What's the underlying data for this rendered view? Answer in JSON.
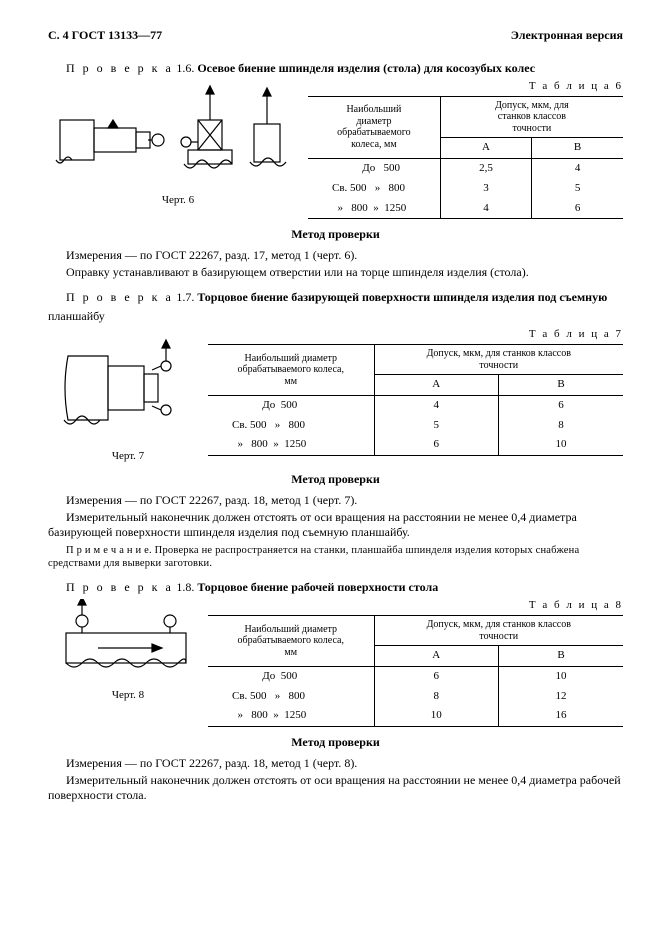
{
  "header": {
    "left": "С. 4 ГОСТ 13133—77",
    "right": "Электронная версия"
  },
  "check16": {
    "prefix": "П р о в е р к а",
    "num": " 1.6. ",
    "title": "Осевое биение шпинделя изделия (стола) для косозубых колес"
  },
  "table6": {
    "label": "Т а б л и ц а  6",
    "h1": "Наибольший\nдиаметр\nобрабатываемого\nколеса, мм",
    "h2": "Допуск, мкм, для\nстанков классов\nточности",
    "hA": "А",
    "hB": "В",
    "rows": [
      {
        "cat": "           До   500",
        "a": "2,5",
        "b": "4"
      },
      {
        "cat": "Св. 500   »   800",
        "a": "3",
        "b": "5"
      },
      {
        "cat": "  »   800  »  1250",
        "a": "4",
        "b": "6"
      }
    ]
  },
  "fig6": "Черт. 6",
  "method_label": "Метод проверки",
  "para16a": "Измерения — по ГОСТ 22267, разд. 17, метод 1 (черт. 6).",
  "para16b": "Оправку устанавливают в базирующем отверстии или на торце шпинделя изделия (стола).",
  "check17": {
    "prefix": "П р о в е р к а",
    "num": " 1.7. ",
    "title1": "Торцовое биение базирующей поверхности шпинделя изделия под съемную",
    "title2": "планшайбу"
  },
  "table7": {
    "label": "Т а б л и ц а  7",
    "h1": "Наибольший диаметр\nобрабатываемого колеса,\nмм",
    "h2": "Допуск, мкм, для станков классов\nточности",
    "hA": "А",
    "hB": "В",
    "rows": [
      {
        "cat": "           До  500",
        "a": "4",
        "b": "6"
      },
      {
        "cat": "Св. 500   »   800",
        "a": "5",
        "b": "8"
      },
      {
        "cat": "  »   800  »  1250",
        "a": "6",
        "b": "10"
      }
    ]
  },
  "fig7": "Черт. 7",
  "para17a": "Измерения — по ГОСТ 22267, разд. 18, метод 1 (черт. 7).",
  "para17b": "Измерительный наконечник должен отстоять от оси вращения на расстоянии не менее 0,4 диаметра базирующей поверхности шпинделя изделия под съемную планшайбу.",
  "note17": "П р и м е ч а н и е. Проверка не распространяется на станки, планшайба шпинделя изделия которых снабжена средствами для выверки заготовки.",
  "check18": {
    "prefix": "П р о в е р к а",
    "num": " 1.8. ",
    "title": "Торцовое биение рабочей поверхности стола"
  },
  "table8": {
    "label": "Т а б л и ц а  8",
    "h1": "Наибольший диаметр\nобрабатываемого колеса,\nмм",
    "h2": "Допуск, мкм, для станков классов\nточности",
    "hA": "А",
    "hB": "В",
    "rows": [
      {
        "cat": "           До  500",
        "a": "6",
        "b": "10"
      },
      {
        "cat": "Св. 500   »   800",
        "a": "8",
        "b": "12"
      },
      {
        "cat": "  »   800  »  1250",
        "a": "10",
        "b": "16"
      }
    ]
  },
  "fig8": "Черт. 8",
  "para18a": "Измерения — по ГОСТ 22267, разд. 18, метод 1 (черт. 8).",
  "para18b": "Измерительный наконечник должен отстоять от оси вращения на расстоянии не менее 0,4 диаметра рабочей поверхности стола."
}
